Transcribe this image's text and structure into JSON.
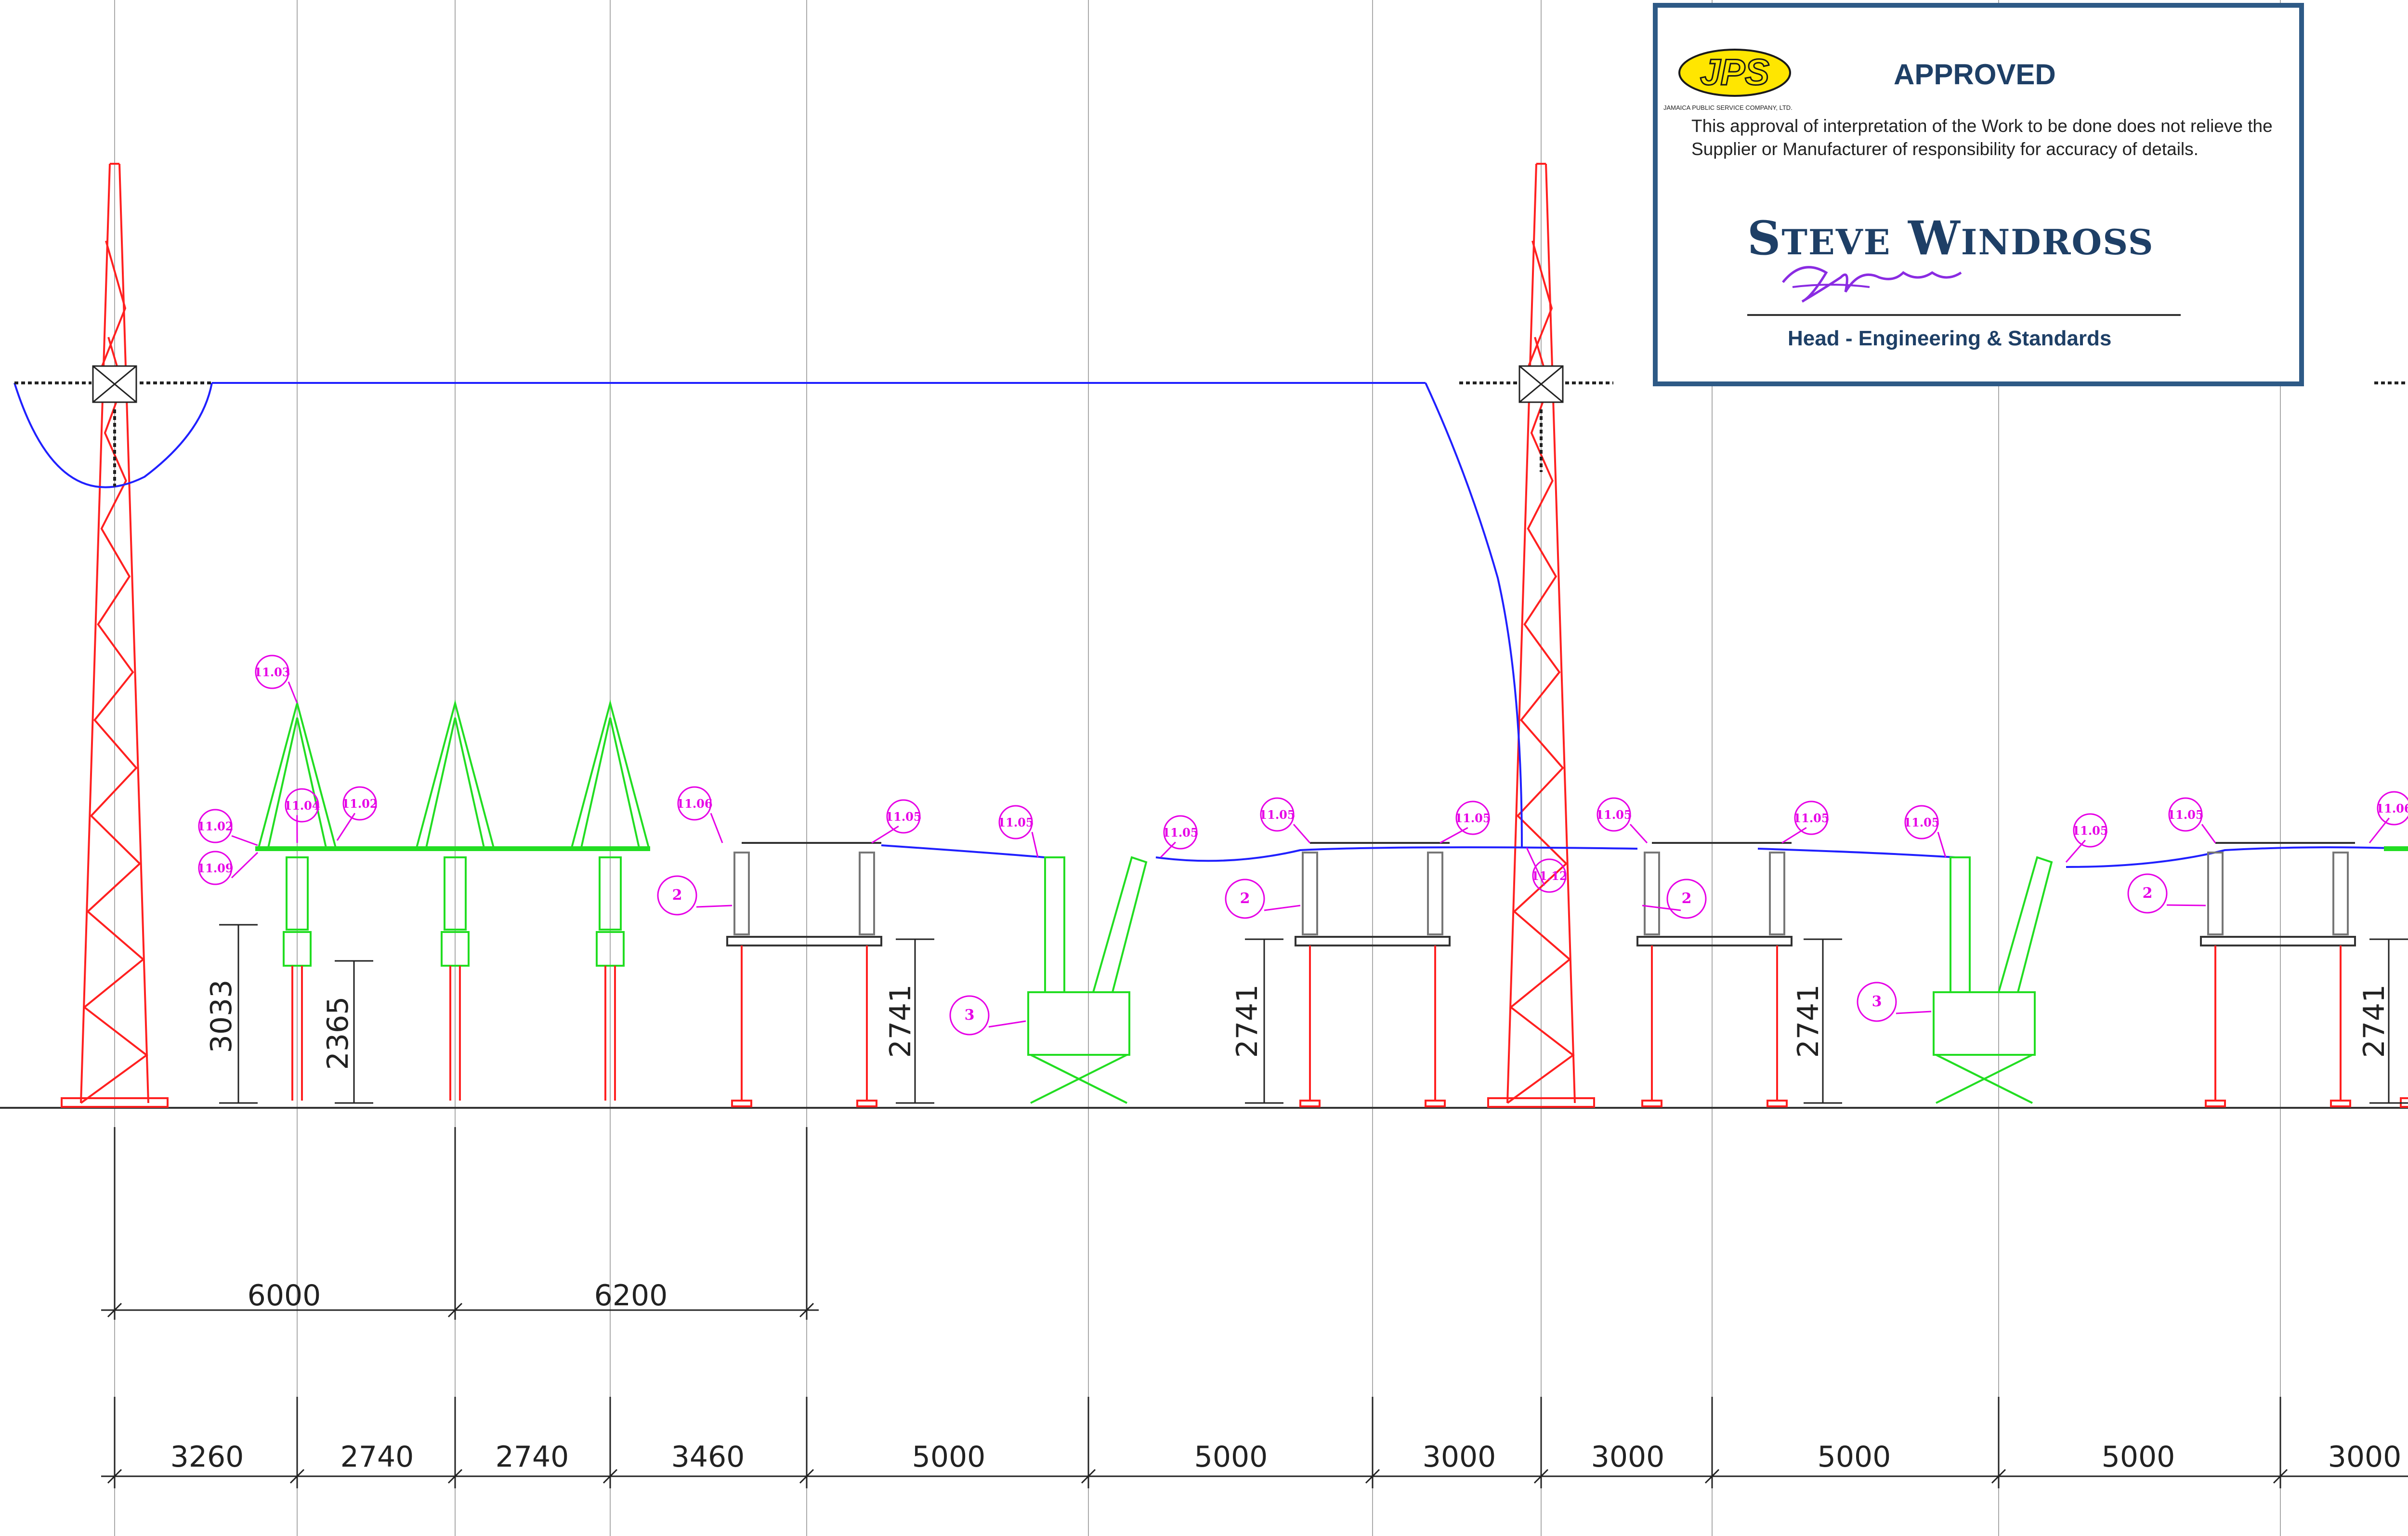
{
  "bottom_dims": [
    "3260",
    "2740",
    "2740",
    "3460",
    "5000",
    "5000",
    "3000",
    "3000",
    "5000",
    "5000",
    "3000"
  ],
  "upper_dims": [
    "6000",
    "6200"
  ],
  "height_dims": [
    "3033",
    "2365",
    "2741",
    "2741",
    "2741",
    "2741"
  ],
  "tags": {
    "t1103": "11.03",
    "t1104": "11.04",
    "t1102": "11.02",
    "t1109": "11.09",
    "t1106": "11.06",
    "t1105": "11.05",
    "t1112": "11.12",
    "t2": "2",
    "t3": "3"
  },
  "stamp": {
    "logo": "JPS",
    "company": "JAMAICA PUBLIC SERVICE COMPANY, LTD.",
    "status": "APPROVED",
    "note": "This approval of interpretation of the Work to be done does not relieve the Supplier or Manufacturer of responsibility for accuracy of details.",
    "name_first_initial": "S",
    "name_first_rest": "TEVE",
    "name_last_initial": "W",
    "name_last_rest": "INDROSS",
    "title": "Head - Engineering & Standards"
  },
  "colors": {
    "tower": "#ff2020",
    "conductor": "#2020ff",
    "equipment": "#22dd22",
    "tag": "#e600e6",
    "stamp_border": "#2e5a86"
  }
}
